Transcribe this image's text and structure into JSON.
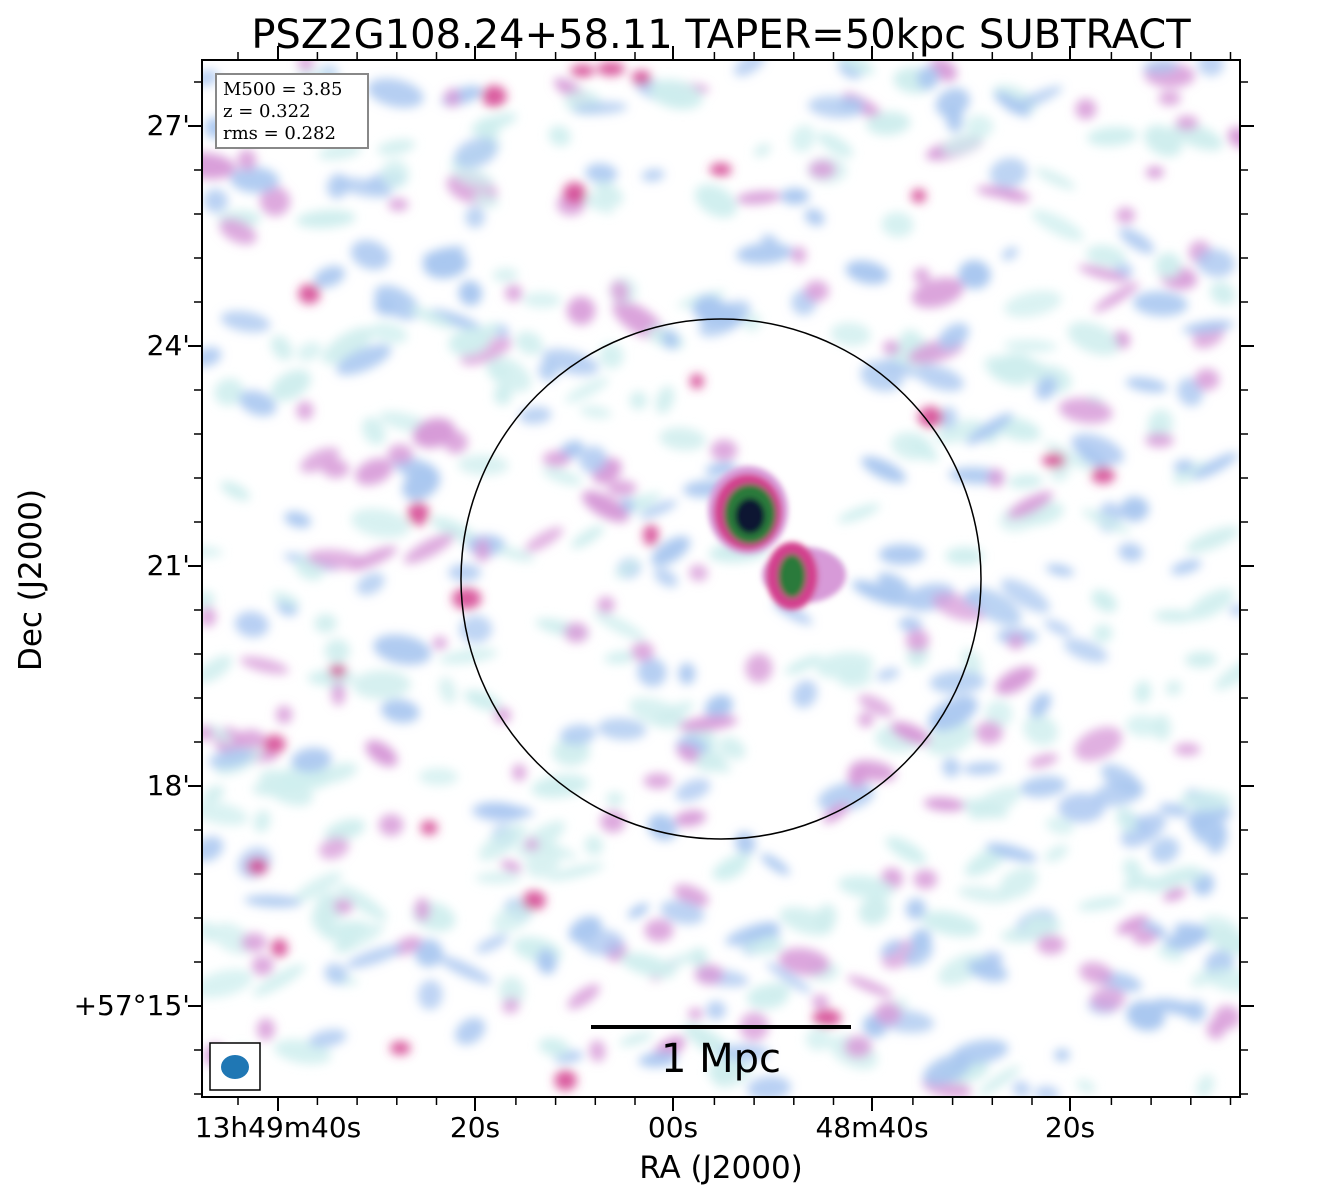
{
  "chart_data": {
    "type": "heatmap",
    "title": "PSZ2G108.24+58.11 TAPER=50kpc SUBTRACT",
    "xlabel": "RA (J2000)",
    "ylabel": "Dec (J2000)",
    "x_ticks": [
      "13h49m40s",
      "20s",
      "00s",
      "48m40s",
      "20s"
    ],
    "y_ticks": [
      "27'",
      "24'",
      "21'",
      "18'",
      "+57°15'"
    ],
    "info_box": [
      "M500 = 3.85",
      "z = 0.322",
      "rms = 0.282"
    ],
    "scale_bar_label": "1 Mpc",
    "colormap": [
      "#ffffff",
      "#cfeeee",
      "#a9c7f0",
      "#d79ad8",
      "#d3408e",
      "#2c7a3a",
      "#101830"
    ],
    "sources": [
      {
        "name": "bright-source-north",
        "peak": "dark"
      },
      {
        "name": "bright-source-south",
        "peak": "green"
      }
    ],
    "circle": "black outline",
    "beam": "blue ellipse",
    "grid": false
  }
}
